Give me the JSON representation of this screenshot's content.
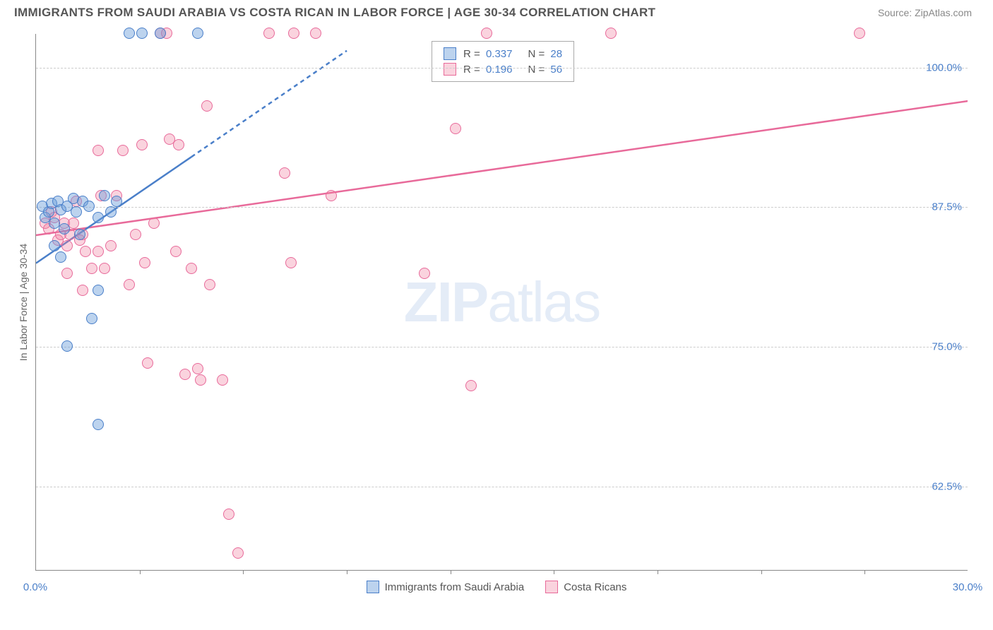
{
  "title": "IMMIGRANTS FROM SAUDI ARABIA VS COSTA RICAN IN LABOR FORCE | AGE 30-34 CORRELATION CHART",
  "source": "Source: ZipAtlas.com",
  "watermark_a": "ZIP",
  "watermark_b": "atlas",
  "chart": {
    "type": "scatter",
    "y_axis_label": "In Labor Force | Age 30-34",
    "xlim": [
      0,
      30
    ],
    "ylim": [
      55,
      103
    ],
    "x_ticks": [
      0,
      30
    ],
    "x_tick_labels": [
      "0.0%",
      "30.0%"
    ],
    "x_minor_ticks": [
      3.33,
      6.67,
      10,
      13.33,
      16.67,
      20,
      23.33,
      26.67
    ],
    "y_gridlines": [
      62.5,
      75.0,
      87.5,
      100.0
    ],
    "y_tick_labels": [
      "62.5%",
      "75.0%",
      "87.5%",
      "100.0%"
    ],
    "background_color": "#ffffff",
    "grid_color": "#cccccc",
    "point_radius": 8,
    "series": {
      "saudi": {
        "label": "Immigrants from Saudi Arabia",
        "fill": "rgba(106,158,218,0.45)",
        "stroke": "#4a7fc9",
        "R": "0.337",
        "N": "28",
        "trend_solid": {
          "x1": 0,
          "y1": 82.5,
          "x2": 5,
          "y2": 92
        },
        "trend_dashed": {
          "x1": 5,
          "y1": 92,
          "x2": 10,
          "y2": 101.5
        },
        "points": [
          [
            0.2,
            87.5
          ],
          [
            0.3,
            86.5
          ],
          [
            0.4,
            87
          ],
          [
            0.5,
            87.8
          ],
          [
            0.6,
            86
          ],
          [
            0.7,
            88
          ],
          [
            0.8,
            87.2
          ],
          [
            0.9,
            85.5
          ],
          [
            1.0,
            87.5
          ],
          [
            1.2,
            88.2
          ],
          [
            1.3,
            87
          ],
          [
            1.5,
            88
          ],
          [
            1.7,
            87.5
          ],
          [
            2.0,
            86.5
          ],
          [
            2.2,
            88.5
          ],
          [
            1.0,
            75
          ],
          [
            1.8,
            77.5
          ],
          [
            2.0,
            80
          ],
          [
            2.4,
            87
          ],
          [
            2.6,
            88
          ],
          [
            3.0,
            103
          ],
          [
            3.4,
            103
          ],
          [
            4.0,
            103
          ],
          [
            5.2,
            103
          ],
          [
            0.6,
            84
          ],
          [
            0.8,
            83
          ],
          [
            1.4,
            85
          ],
          [
            2.0,
            68
          ]
        ]
      },
      "costa": {
        "label": "Costa Ricans",
        "fill": "rgba(240,128,160,0.35)",
        "stroke": "#e86a9a",
        "R": "0.196",
        "N": "56",
        "trend_solid": {
          "x1": 0,
          "y1": 85,
          "x2": 30,
          "y2": 97
        },
        "points": [
          [
            0.3,
            86
          ],
          [
            0.4,
            85.5
          ],
          [
            0.5,
            87
          ],
          [
            0.6,
            86.5
          ],
          [
            0.7,
            84.5
          ],
          [
            0.8,
            85
          ],
          [
            0.9,
            86
          ],
          [
            1.0,
            84
          ],
          [
            1.1,
            85
          ],
          [
            1.2,
            86
          ],
          [
            1.3,
            88
          ],
          [
            1.4,
            84.5
          ],
          [
            1.5,
            85
          ],
          [
            1.6,
            83.5
          ],
          [
            1.8,
            82
          ],
          [
            2.0,
            83.5
          ],
          [
            2.1,
            88.5
          ],
          [
            2.2,
            82
          ],
          [
            2.4,
            84
          ],
          [
            2.6,
            88.5
          ],
          [
            2.8,
            92.5
          ],
          [
            3.0,
            80.5
          ],
          [
            3.2,
            85
          ],
          [
            3.4,
            93
          ],
          [
            3.5,
            82.5
          ],
          [
            3.6,
            73.5
          ],
          [
            3.8,
            86
          ],
          [
            4.0,
            103
          ],
          [
            4.2,
            103
          ],
          [
            4.3,
            93.5
          ],
          [
            4.5,
            83.5
          ],
          [
            4.8,
            72.5
          ],
          [
            5.0,
            82
          ],
          [
            5.2,
            73
          ],
          [
            5.3,
            72
          ],
          [
            5.5,
            96.5
          ],
          [
            5.6,
            80.5
          ],
          [
            6.0,
            72
          ],
          [
            6.2,
            60
          ],
          [
            6.5,
            56.5
          ],
          [
            7.5,
            103
          ],
          [
            8.0,
            90.5
          ],
          [
            8.2,
            82.5
          ],
          [
            8.3,
            103
          ],
          [
            9.0,
            103
          ],
          [
            9.5,
            88.5
          ],
          [
            12.5,
            81.5
          ],
          [
            13.5,
            94.5
          ],
          [
            14.0,
            71.5
          ],
          [
            14.5,
            103
          ],
          [
            18.5,
            103
          ],
          [
            26.5,
            103
          ],
          [
            2.0,
            92.5
          ],
          [
            1.0,
            81.5
          ],
          [
            1.5,
            80
          ],
          [
            4.6,
            93
          ]
        ]
      }
    }
  },
  "legend_top_rows": [
    {
      "series": "saudi",
      "R_label": "R = ",
      "N_label": "N = "
    },
    {
      "series": "costa",
      "R_label": "R = ",
      "N_label": "N = "
    }
  ]
}
